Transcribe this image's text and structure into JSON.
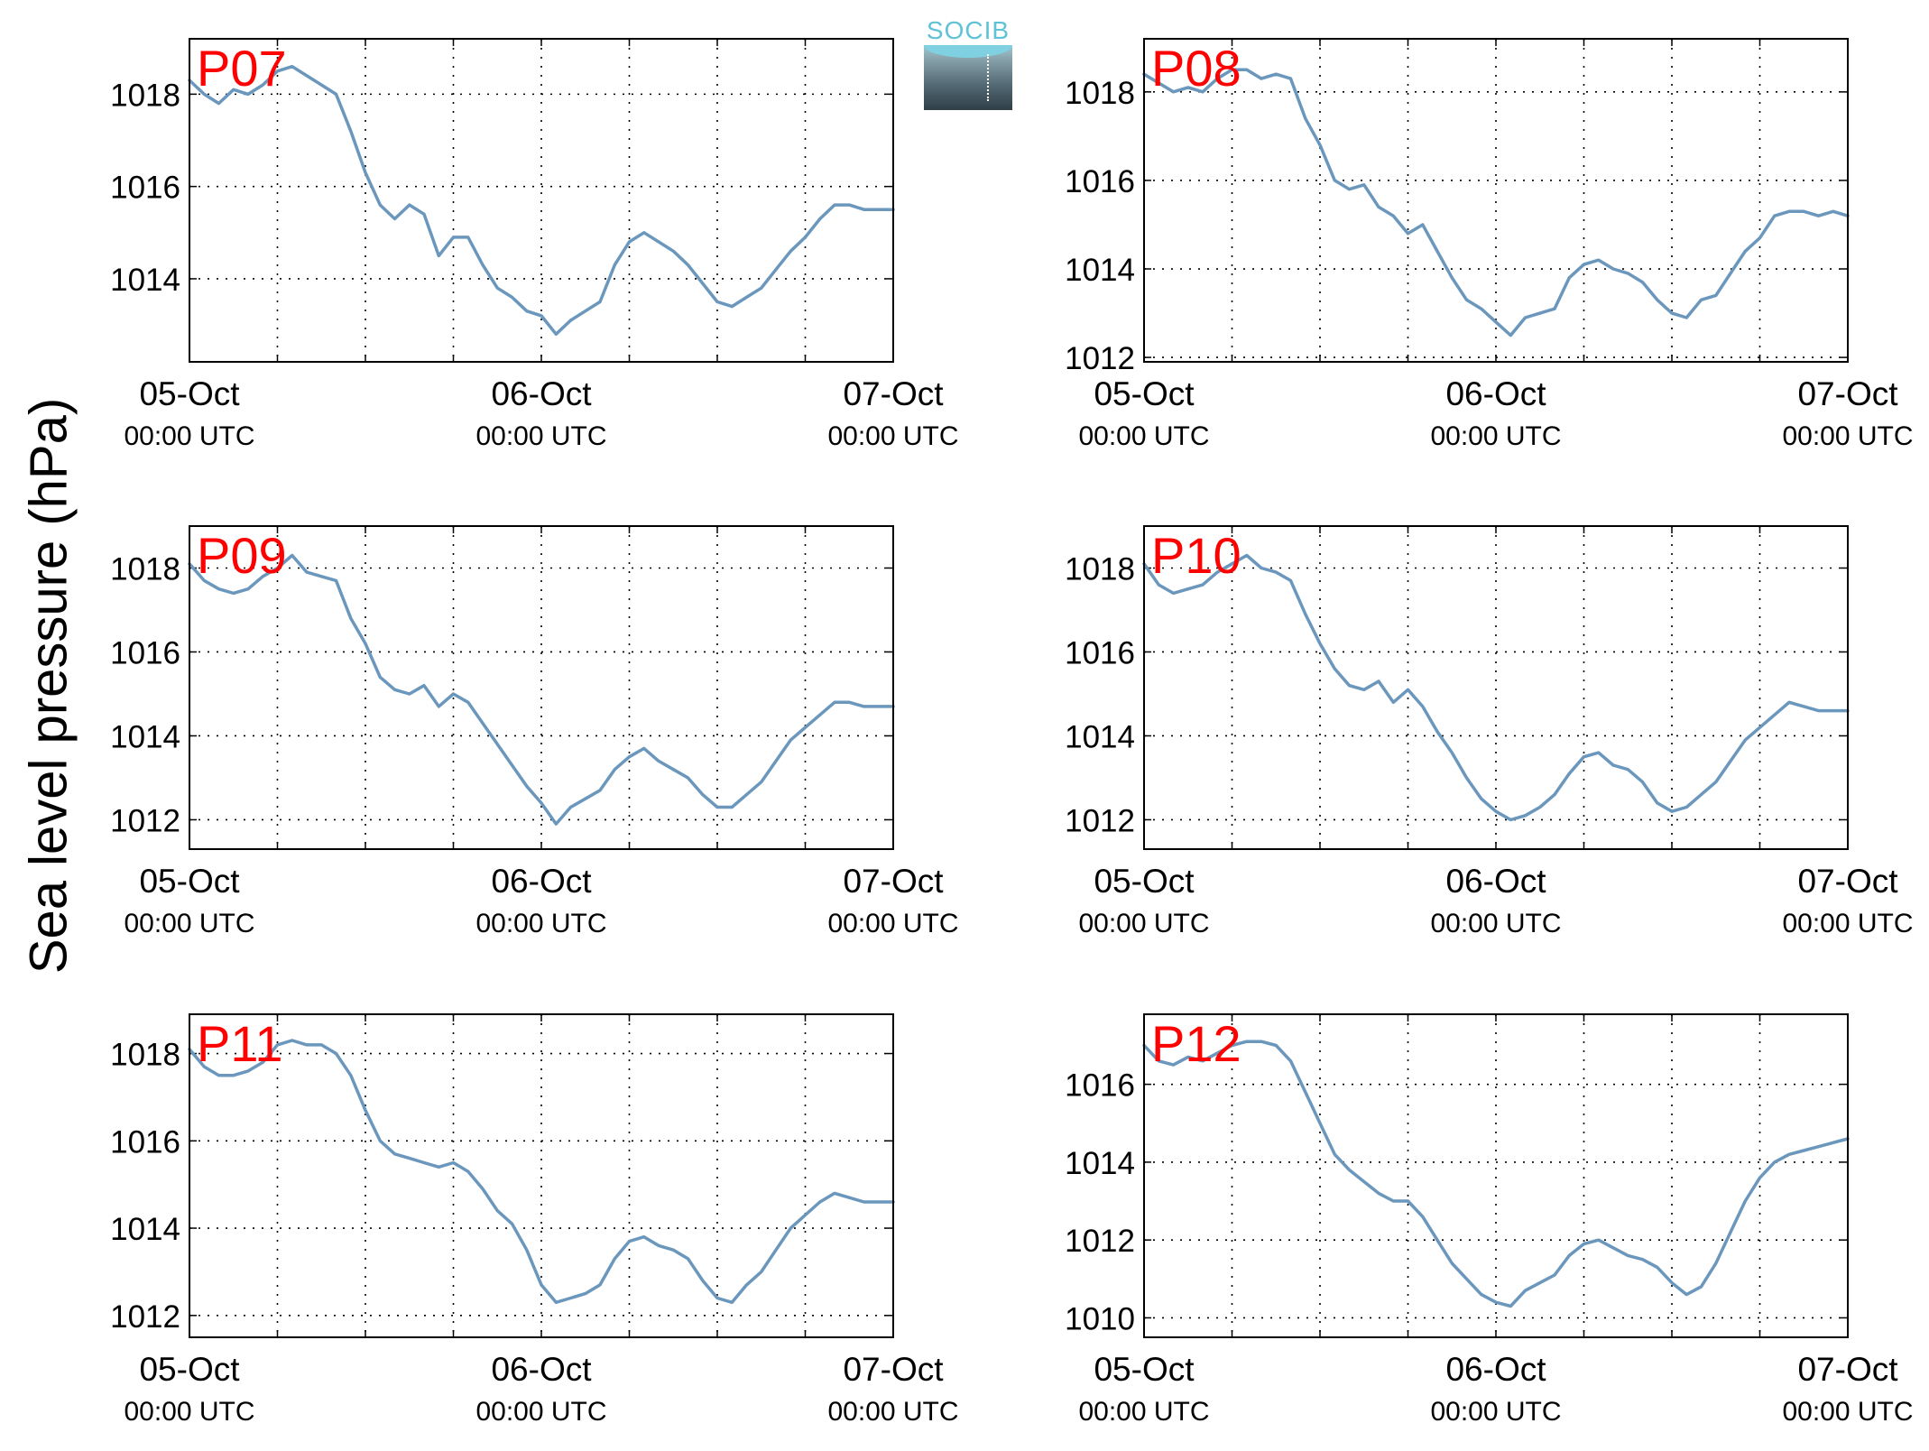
{
  "y_axis_label": "Sea level pressure (hPa)",
  "logo": {
    "text": "SOCIB"
  },
  "colors": {
    "line": "#6b97bd",
    "panel_label": "#ff0000",
    "grid": "#000000"
  },
  "chart_data": [
    {
      "type": "line",
      "title": "P07",
      "ylim": [
        1012.2,
        1019.2
      ],
      "yticks": [
        1014,
        1016,
        1018
      ],
      "xlim": [
        0,
        48
      ],
      "x_ticks": [
        {
          "line1": "05-Oct",
          "line2": "00:00 UTC",
          "x": 0
        },
        {
          "line1": "06-Oct",
          "line2": "00:00 UTC",
          "x": 24
        },
        {
          "line1": "07-Oct",
          "line2": "00:00 UTC",
          "x": 48
        }
      ],
      "x_grid": [
        6,
        12,
        18,
        24,
        30,
        36,
        42
      ],
      "series": [
        {
          "x": [
            0,
            1,
            2,
            3,
            4,
            5,
            6,
            7,
            8,
            9,
            10,
            11,
            12,
            13,
            14,
            15,
            16,
            17,
            18,
            19,
            20,
            21,
            22,
            23,
            24,
            25,
            26,
            27,
            28,
            29,
            30,
            31,
            32,
            33,
            34,
            35,
            36,
            37,
            38,
            39,
            40,
            41,
            42,
            43,
            44,
            45,
            46,
            47,
            48
          ],
          "values": [
            1018.3,
            1018.0,
            1017.8,
            1018.1,
            1018.0,
            1018.2,
            1018.5,
            1018.6,
            1018.4,
            1018.2,
            1018.0,
            1017.2,
            1016.3,
            1015.6,
            1015.3,
            1015.6,
            1015.4,
            1014.5,
            1014.9,
            1014.9,
            1014.3,
            1013.8,
            1013.6,
            1013.3,
            1013.2,
            1012.8,
            1013.1,
            1013.3,
            1013.5,
            1014.3,
            1014.8,
            1015.0,
            1014.8,
            1014.6,
            1014.3,
            1013.9,
            1013.5,
            1013.4,
            1013.6,
            1013.8,
            1014.2,
            1014.6,
            1014.9,
            1015.3,
            1015.6,
            1015.6,
            1015.5,
            1015.5,
            1015.5
          ]
        }
      ]
    },
    {
      "type": "line",
      "title": "P08",
      "ylim": [
        1011.9,
        1019.2
      ],
      "yticks": [
        1012,
        1014,
        1016,
        1018
      ],
      "xlim": [
        0,
        48
      ],
      "x_ticks": [
        {
          "line1": "05-Oct",
          "line2": "00:00 UTC",
          "x": 0
        },
        {
          "line1": "06-Oct",
          "line2": "00:00 UTC",
          "x": 24
        },
        {
          "line1": "07-Oct",
          "line2": "00:00 UTC",
          "x": 48
        }
      ],
      "x_grid": [
        6,
        12,
        18,
        24,
        30,
        36,
        42
      ],
      "series": [
        {
          "x": [
            0,
            1,
            2,
            3,
            4,
            5,
            6,
            7,
            8,
            9,
            10,
            11,
            12,
            13,
            14,
            15,
            16,
            17,
            18,
            19,
            20,
            21,
            22,
            23,
            24,
            25,
            26,
            27,
            28,
            29,
            30,
            31,
            32,
            33,
            34,
            35,
            36,
            37,
            38,
            39,
            40,
            41,
            42,
            43,
            44,
            45,
            46,
            47,
            48
          ],
          "values": [
            1018.4,
            1018.2,
            1018.0,
            1018.1,
            1018.0,
            1018.3,
            1018.5,
            1018.5,
            1018.3,
            1018.4,
            1018.3,
            1017.4,
            1016.8,
            1016.0,
            1015.8,
            1015.9,
            1015.4,
            1015.2,
            1014.8,
            1015.0,
            1014.4,
            1013.8,
            1013.3,
            1013.1,
            1012.8,
            1012.5,
            1012.9,
            1013.0,
            1013.1,
            1013.8,
            1014.1,
            1014.2,
            1014.0,
            1013.9,
            1013.7,
            1013.3,
            1013.0,
            1012.9,
            1013.3,
            1013.4,
            1013.9,
            1014.4,
            1014.7,
            1015.2,
            1015.3,
            1015.3,
            1015.2,
            1015.3,
            1015.2
          ]
        }
      ]
    },
    {
      "type": "line",
      "title": "P09",
      "ylim": [
        1011.3,
        1019.0
      ],
      "yticks": [
        1012,
        1014,
        1016,
        1018
      ],
      "xlim": [
        0,
        48
      ],
      "x_ticks": [
        {
          "line1": "05-Oct",
          "line2": "00:00 UTC",
          "x": 0
        },
        {
          "line1": "06-Oct",
          "line2": "00:00 UTC",
          "x": 24
        },
        {
          "line1": "07-Oct",
          "line2": "00:00 UTC",
          "x": 48
        }
      ],
      "x_grid": [
        6,
        12,
        18,
        24,
        30,
        36,
        42
      ],
      "series": [
        {
          "x": [
            0,
            1,
            2,
            3,
            4,
            5,
            6,
            7,
            8,
            9,
            10,
            11,
            12,
            13,
            14,
            15,
            16,
            17,
            18,
            19,
            20,
            21,
            22,
            23,
            24,
            25,
            26,
            27,
            28,
            29,
            30,
            31,
            32,
            33,
            34,
            35,
            36,
            37,
            38,
            39,
            40,
            41,
            42,
            43,
            44,
            45,
            46,
            47,
            48
          ],
          "values": [
            1018.1,
            1017.7,
            1017.5,
            1017.4,
            1017.5,
            1017.8,
            1018.0,
            1018.3,
            1017.9,
            1017.8,
            1017.7,
            1016.8,
            1016.2,
            1015.4,
            1015.1,
            1015.0,
            1015.2,
            1014.7,
            1015.0,
            1014.8,
            1014.3,
            1013.8,
            1013.3,
            1012.8,
            1012.4,
            1011.9,
            1012.3,
            1012.5,
            1012.7,
            1013.2,
            1013.5,
            1013.7,
            1013.4,
            1013.2,
            1013.0,
            1012.6,
            1012.3,
            1012.3,
            1012.6,
            1012.9,
            1013.4,
            1013.9,
            1014.2,
            1014.5,
            1014.8,
            1014.8,
            1014.7,
            1014.7,
            1014.7
          ]
        }
      ]
    },
    {
      "type": "line",
      "title": "P10",
      "ylim": [
        1011.3,
        1019.0
      ],
      "yticks": [
        1012,
        1014,
        1016,
        1018
      ],
      "xlim": [
        0,
        48
      ],
      "x_ticks": [
        {
          "line1": "05-Oct",
          "line2": "00:00 UTC",
          "x": 0
        },
        {
          "line1": "06-Oct",
          "line2": "00:00 UTC",
          "x": 24
        },
        {
          "line1": "07-Oct",
          "line2": "00:00 UTC",
          "x": 48
        }
      ],
      "x_grid": [
        6,
        12,
        18,
        24,
        30,
        36,
        42
      ],
      "series": [
        {
          "x": [
            0,
            1,
            2,
            3,
            4,
            5,
            6,
            7,
            8,
            9,
            10,
            11,
            12,
            13,
            14,
            15,
            16,
            17,
            18,
            19,
            20,
            21,
            22,
            23,
            24,
            25,
            26,
            27,
            28,
            29,
            30,
            31,
            32,
            33,
            34,
            35,
            36,
            37,
            38,
            39,
            40,
            41,
            42,
            43,
            44,
            45,
            46,
            47,
            48
          ],
          "values": [
            1018.1,
            1017.6,
            1017.4,
            1017.5,
            1017.6,
            1017.9,
            1018.1,
            1018.3,
            1018.0,
            1017.9,
            1017.7,
            1016.9,
            1016.2,
            1015.6,
            1015.2,
            1015.1,
            1015.3,
            1014.8,
            1015.1,
            1014.7,
            1014.1,
            1013.6,
            1013.0,
            1012.5,
            1012.2,
            1012.0,
            1012.1,
            1012.3,
            1012.6,
            1013.1,
            1013.5,
            1013.6,
            1013.3,
            1013.2,
            1012.9,
            1012.4,
            1012.2,
            1012.3,
            1012.6,
            1012.9,
            1013.4,
            1013.9,
            1014.2,
            1014.5,
            1014.8,
            1014.7,
            1014.6,
            1014.6,
            1014.6
          ]
        }
      ]
    },
    {
      "type": "line",
      "title": "P11",
      "ylim": [
        1011.5,
        1018.9
      ],
      "yticks": [
        1012,
        1014,
        1016,
        1018
      ],
      "xlim": [
        0,
        48
      ],
      "x_ticks": [
        {
          "line1": "05-Oct",
          "line2": "00:00 UTC",
          "x": 0
        },
        {
          "line1": "06-Oct",
          "line2": "00:00 UTC",
          "x": 24
        },
        {
          "line1": "07-Oct",
          "line2": "00:00 UTC",
          "x": 48
        }
      ],
      "x_grid": [
        6,
        12,
        18,
        24,
        30,
        36,
        42
      ],
      "series": [
        {
          "x": [
            0,
            1,
            2,
            3,
            4,
            5,
            6,
            7,
            8,
            9,
            10,
            11,
            12,
            13,
            14,
            15,
            16,
            17,
            18,
            19,
            20,
            21,
            22,
            23,
            24,
            25,
            26,
            27,
            28,
            29,
            30,
            31,
            32,
            33,
            34,
            35,
            36,
            37,
            38,
            39,
            40,
            41,
            42,
            43,
            44,
            45,
            46,
            47,
            48
          ],
          "values": [
            1018.1,
            1017.7,
            1017.5,
            1017.5,
            1017.6,
            1017.8,
            1018.2,
            1018.3,
            1018.2,
            1018.2,
            1018.0,
            1017.5,
            1016.7,
            1016.0,
            1015.7,
            1015.6,
            1015.5,
            1015.4,
            1015.5,
            1015.3,
            1014.9,
            1014.4,
            1014.1,
            1013.5,
            1012.7,
            1012.3,
            1012.4,
            1012.5,
            1012.7,
            1013.3,
            1013.7,
            1013.8,
            1013.6,
            1013.5,
            1013.3,
            1012.8,
            1012.4,
            1012.3,
            1012.7,
            1013.0,
            1013.5,
            1014.0,
            1014.3,
            1014.6,
            1014.8,
            1014.7,
            1014.6,
            1014.6,
            1014.6
          ]
        }
      ]
    },
    {
      "type": "line",
      "title": "P12",
      "ylim": [
        1009.5,
        1017.8
      ],
      "yticks": [
        1010,
        1012,
        1014,
        1016
      ],
      "xlim": [
        0,
        48
      ],
      "x_ticks": [
        {
          "line1": "05-Oct",
          "line2": "00:00 UTC",
          "x": 0
        },
        {
          "line1": "06-Oct",
          "line2": "00:00 UTC",
          "x": 24
        },
        {
          "line1": "07-Oct",
          "line2": "00:00 UTC",
          "x": 48
        }
      ],
      "x_grid": [
        6,
        12,
        18,
        24,
        30,
        36,
        42
      ],
      "series": [
        {
          "x": [
            0,
            1,
            2,
            3,
            4,
            5,
            6,
            7,
            8,
            9,
            10,
            11,
            12,
            13,
            14,
            15,
            16,
            17,
            18,
            19,
            20,
            21,
            22,
            23,
            24,
            25,
            26,
            27,
            28,
            29,
            30,
            31,
            32,
            33,
            34,
            35,
            36,
            37,
            38,
            39,
            40,
            41,
            42,
            43,
            44,
            45,
            46,
            47,
            48
          ],
          "values": [
            1017.0,
            1016.6,
            1016.5,
            1016.7,
            1016.6,
            1016.8,
            1017.0,
            1017.1,
            1017.1,
            1017.0,
            1016.6,
            1015.8,
            1015.0,
            1014.2,
            1013.8,
            1013.5,
            1013.2,
            1013.0,
            1013.0,
            1012.6,
            1012.0,
            1011.4,
            1011.0,
            1010.6,
            1010.4,
            1010.3,
            1010.7,
            1010.9,
            1011.1,
            1011.6,
            1011.9,
            1012.0,
            1011.8,
            1011.6,
            1011.5,
            1011.3,
            1010.9,
            1010.6,
            1010.8,
            1011.4,
            1012.2,
            1013.0,
            1013.6,
            1014.0,
            1014.2,
            1014.3,
            1014.4,
            1014.5,
            1014.6
          ]
        }
      ]
    }
  ]
}
